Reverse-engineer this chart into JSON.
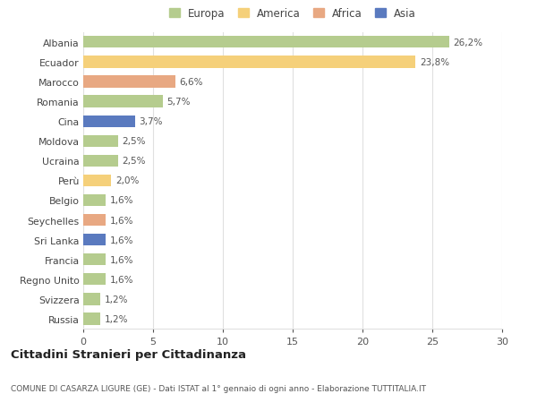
{
  "countries": [
    "Albania",
    "Ecuador",
    "Marocco",
    "Romania",
    "Cina",
    "Moldova",
    "Ucraina",
    "Perù",
    "Belgio",
    "Seychelles",
    "Sri Lanka",
    "Francia",
    "Regno Unito",
    "Svizzera",
    "Russia"
  ],
  "values": [
    26.2,
    23.8,
    6.6,
    5.7,
    3.7,
    2.5,
    2.5,
    2.0,
    1.6,
    1.6,
    1.6,
    1.6,
    1.6,
    1.2,
    1.2
  ],
  "labels": [
    "26,2%",
    "23,8%",
    "6,6%",
    "5,7%",
    "3,7%",
    "2,5%",
    "2,5%",
    "2,0%",
    "1,6%",
    "1,6%",
    "1,6%",
    "1,6%",
    "1,6%",
    "1,2%",
    "1,2%"
  ],
  "colors": [
    "#b5cc8e",
    "#f5d07a",
    "#e8a882",
    "#b5cc8e",
    "#5a7abf",
    "#b5cc8e",
    "#b5cc8e",
    "#f5d07a",
    "#b5cc8e",
    "#e8a882",
    "#5a7abf",
    "#b5cc8e",
    "#b5cc8e",
    "#b5cc8e",
    "#b5cc8e"
  ],
  "legend_labels": [
    "Europa",
    "America",
    "Africa",
    "Asia"
  ],
  "legend_colors": [
    "#b5cc8e",
    "#f5d07a",
    "#e8a882",
    "#5a7abf"
  ],
  "title": "Cittadini Stranieri per Cittadinanza",
  "subtitle": "COMUNE DI CASARZA LIGURE (GE) - Dati ISTAT al 1° gennaio di ogni anno - Elaborazione TUTTITALIA.IT",
  "xlim": [
    0,
    30
  ],
  "xticks": [
    0,
    5,
    10,
    15,
    20,
    25,
    30
  ],
  "background_color": "#ffffff",
  "grid_color": "#e0e0e0",
  "bar_height": 0.6
}
